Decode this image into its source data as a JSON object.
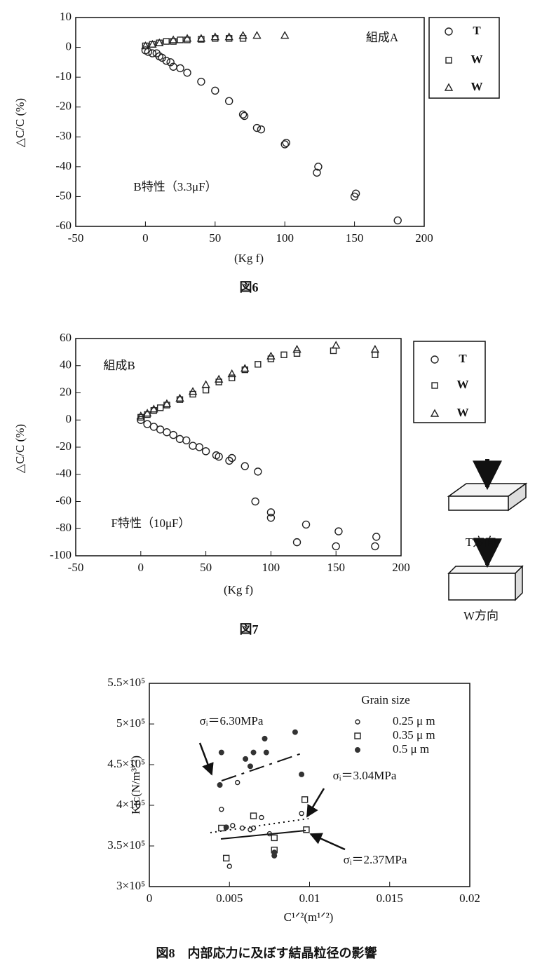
{
  "chart_data": [
    {
      "type": "scatter",
      "caption": "図6",
      "xlabel": "(Kg f)",
      "ylabel": "△C/C (%)",
      "xlim": [
        -50,
        200
      ],
      "xticks": [
        -50,
        0,
        50,
        100,
        150,
        200
      ],
      "ylim": [
        -60,
        10
      ],
      "yticks": [
        -60,
        -50,
        -40,
        -30,
        -20,
        -10,
        0,
        10
      ],
      "annotations": [
        "組成A",
        "B特性（3.3μF）"
      ],
      "series": [
        {
          "name": "T",
          "marker": "circle",
          "color": "#222",
          "x": [
            0,
            2,
            5,
            8,
            10,
            12,
            15,
            18,
            20,
            25,
            30,
            40,
            50,
            60,
            70,
            71,
            80,
            83,
            100,
            101,
            123,
            124,
            150,
            151,
            181
          ],
          "values": [
            -1,
            -1.5,
            -2,
            -2,
            -3,
            -3.5,
            -4.5,
            -5,
            -6.5,
            -7,
            -8.5,
            -11.5,
            -14.5,
            -18,
            -22.5,
            -23,
            -27,
            -27.5,
            -32.5,
            -32,
            -42,
            -40,
            -50,
            -49,
            -58
          ]
        },
        {
          "name": "W",
          "marker": "square",
          "color": "#222",
          "x": [
            0,
            5,
            10,
            15,
            20,
            25,
            30,
            40,
            50,
            60,
            70
          ],
          "values": [
            0.5,
            1,
            1.5,
            2,
            2,
            2.5,
            2.5,
            2.7,
            3,
            3,
            3
          ]
        },
        {
          "name": "W",
          "marker": "triangle",
          "color": "#222",
          "x": [
            0,
            5,
            10,
            20,
            30,
            40,
            50,
            60,
            70,
            80,
            100
          ],
          "values": [
            0.5,
            1,
            1.5,
            2.5,
            3,
            3,
            3.5,
            3.5,
            4,
            4,
            4
          ]
        }
      ]
    },
    {
      "type": "scatter",
      "caption": "図7",
      "xlabel": "(Kg f)",
      "ylabel": "△C/C (%)",
      "xlim": [
        -50,
        200
      ],
      "xticks": [
        -50,
        0,
        50,
        100,
        150,
        200
      ],
      "ylim": [
        -100,
        60
      ],
      "yticks": [
        -100,
        -80,
        -60,
        -40,
        -20,
        0,
        20,
        40,
        60
      ],
      "annotations": [
        "組成B",
        "F特性（10μF）",
        "T方向",
        "W方向"
      ],
      "series": [
        {
          "name": "T",
          "marker": "circle",
          "color": "#222",
          "x": [
            0,
            5,
            10,
            15,
            20,
            25,
            30,
            35,
            40,
            45,
            50,
            58,
            60,
            68,
            70,
            80,
            90,
            88,
            100,
            100,
            120,
            127,
            150,
            152,
            180,
            181
          ],
          "values": [
            0,
            -3,
            -5,
            -7,
            -9,
            -11,
            -14,
            -15,
            -19,
            -20,
            -23,
            -26,
            -27,
            -30,
            -28,
            -34,
            -38,
            -60,
            -68,
            -72,
            -90,
            -77,
            -93,
            -82,
            -93,
            -86
          ]
        },
        {
          "name": "W",
          "marker": "square",
          "color": "#222",
          "x": [
            0,
            5,
            10,
            15,
            20,
            30,
            40,
            50,
            60,
            70,
            80,
            90,
            100,
            110,
            120,
            148,
            180
          ],
          "values": [
            2,
            4,
            7,
            9,
            11,
            15,
            19,
            22,
            28,
            31,
            37,
            41,
            45,
            48,
            49,
            51,
            48
          ]
        },
        {
          "name": "W",
          "marker": "triangle",
          "color": "#222",
          "x": [
            0,
            5,
            10,
            20,
            30,
            40,
            50,
            60,
            70,
            80,
            100,
            120,
            150,
            180
          ],
          "values": [
            3,
            5,
            8,
            12,
            16,
            21,
            26,
            30,
            34,
            38,
            47,
            52,
            55,
            52
          ]
        }
      ]
    },
    {
      "type": "scatter",
      "caption": "図8　内部応力に及ぼす結晶粒径の影響",
      "xlabel": "C¹ᐟ²(m¹ᐟ²)",
      "ylabel": "Kɪᴄ(N/m³ᐟ²)",
      "legend_title": "Grain size",
      "xlim": [
        0,
        0.02
      ],
      "xticks": [
        0,
        0.005,
        0.01,
        0.015,
        0.02
      ],
      "ylim": [
        300000,
        550000
      ],
      "yticks": [
        {
          "value": 300000,
          "label": "3×10⁵"
        },
        {
          "value": 350000,
          "label": "3.5×10⁵"
        },
        {
          "value": 400000,
          "label": "4×10⁵"
        },
        {
          "value": 450000,
          "label": "4.5×10⁵"
        },
        {
          "value": 500000,
          "label": "5×10⁵"
        },
        {
          "value": 550000,
          "label": "5.5×10⁵"
        }
      ],
      "annotations": [
        "σᵢ＝6.30MPa",
        "σᵢ＝3.04MPa",
        "σᵢ＝2.37MPa"
      ],
      "series": [
        {
          "name": "0.25 μ m",
          "marker": "small",
          "color": "#222",
          "x": [
            0.0045,
            0.005,
            0.0052,
            0.0058,
            0.0063,
            0.007,
            0.0075,
            0.0095,
            0.0055,
            0.0065
          ],
          "values": [
            395000,
            325000,
            375000,
            372000,
            370000,
            385000,
            365000,
            390000,
            428000,
            372000
          ]
        },
        {
          "name": "0.35 μ m",
          "marker": "square",
          "color": "#222",
          "x": [
            0.0045,
            0.0048,
            0.0065,
            0.0078,
            0.0078,
            0.0097,
            0.0098
          ],
          "values": [
            372000,
            335000,
            387000,
            360000,
            345000,
            407000,
            370000
          ]
        },
        {
          "name": "0.5 μ m",
          "marker": "dot",
          "color": "#333",
          "x": [
            0.0044,
            0.0045,
            0.006,
            0.0063,
            0.0065,
            0.0072,
            0.0073,
            0.0091,
            0.0095,
            0.0078,
            0.0078,
            0.0048
          ],
          "values": [
            425000,
            465000,
            457000,
            448000,
            465000,
            482000,
            465000,
            490000,
            438000,
            342000,
            338000,
            373000
          ]
        }
      ]
    }
  ]
}
